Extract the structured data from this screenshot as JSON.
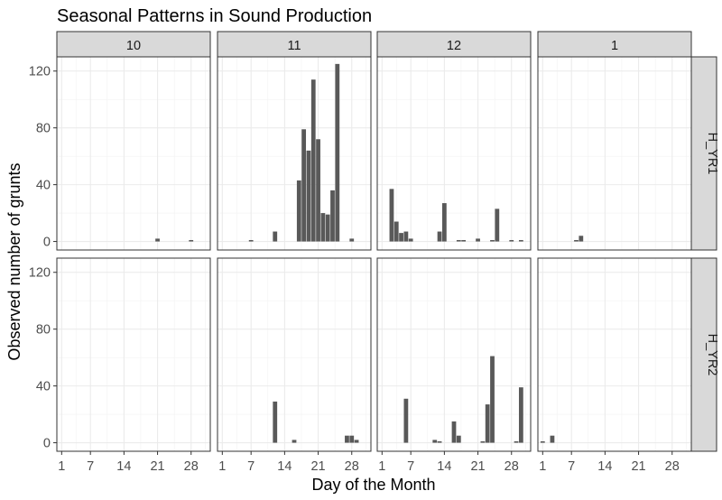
{
  "chart_data": {
    "type": "bar",
    "title": "Seasonal Patterns in Sound Production",
    "xlabel": "Day of the Month",
    "ylabel": "Observed number of grunts",
    "ylim": [
      -6,
      130
    ],
    "xlim": [
      0,
      32
    ],
    "x_ticks": [
      1,
      7,
      14,
      21,
      28
    ],
    "y_ticks": [
      0,
      40,
      80,
      120
    ],
    "grid": true,
    "facet_columns": [
      "10",
      "11",
      "12",
      "1"
    ],
    "facet_rows": [
      "H_YR1",
      "H_YR2"
    ],
    "panels": [
      {
        "row": "H_YR1",
        "column": "10",
        "x": [
          21,
          28
        ],
        "values": [
          2,
          1
        ]
      },
      {
        "row": "H_YR1",
        "column": "11",
        "x": [
          7,
          12,
          17,
          18,
          19,
          20,
          21,
          22,
          23,
          24,
          25,
          26,
          27,
          28
        ],
        "values": [
          1,
          7,
          43,
          79,
          64,
          114,
          72,
          20,
          19,
          36,
          125,
          0,
          0,
          2
        ]
      },
      {
        "row": "H_YR1",
        "column": "12",
        "x": [
          3,
          4,
          5,
          6,
          7,
          13,
          14,
          17,
          18,
          21,
          24,
          25,
          28,
          30
        ],
        "values": [
          37,
          14,
          6,
          7,
          2,
          7,
          27,
          1,
          1,
          2,
          1,
          23,
          1,
          1
        ]
      },
      {
        "row": "H_YR1",
        "column": "1",
        "x": [
          8,
          9
        ],
        "values": [
          1,
          4
        ]
      },
      {
        "row": "H_YR2",
        "column": "10",
        "x": [],
        "values": []
      },
      {
        "row": "H_YR2",
        "column": "11",
        "x": [
          12,
          16,
          27,
          28,
          29
        ],
        "values": [
          29,
          2,
          5,
          5,
          2
        ]
      },
      {
        "row": "H_YR2",
        "column": "12",
        "x": [
          6,
          12,
          13,
          16,
          17,
          22,
          23,
          24,
          29,
          30
        ],
        "values": [
          31,
          2,
          1,
          15,
          5,
          1,
          27,
          61,
          1,
          39
        ]
      },
      {
        "row": "H_YR2",
        "column": "1",
        "x": [
          1,
          3
        ],
        "values": [
          1,
          5
        ]
      }
    ]
  }
}
